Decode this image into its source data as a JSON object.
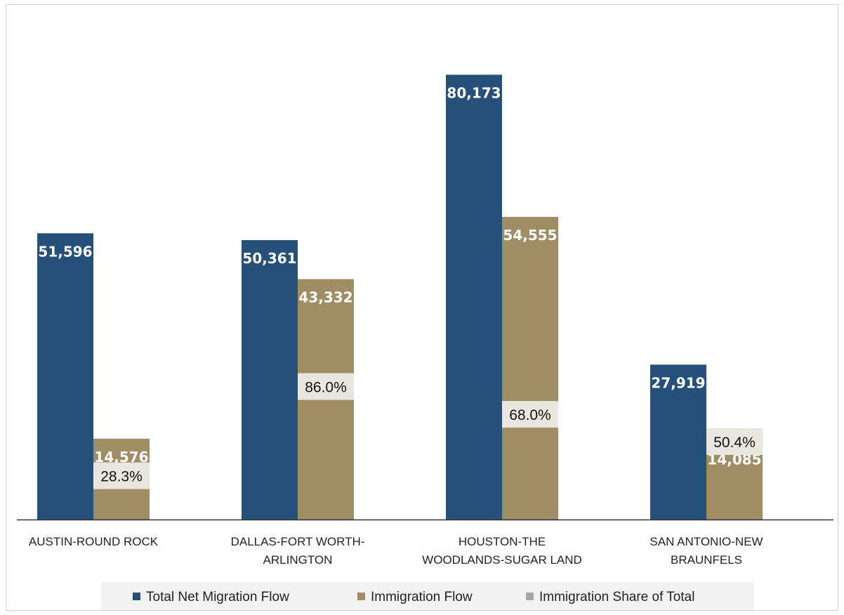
{
  "chart_data": {
    "type": "bar",
    "categories": [
      "AUSTIN-ROUND ROCK",
      "DALLAS-FORT WORTH-ARLINGTON",
      "HOUSTON-THE WOODLANDS-SUGAR LAND",
      "SAN ANTONIO-NEW BRAUNFELS"
    ],
    "category_lines": [
      [
        "AUSTIN-ROUND ROCK"
      ],
      [
        "DALLAS-FORT WORTH-",
        "ARLINGTON"
      ],
      [
        "HOUSTON-THE",
        "WOODLANDS-SUGAR LAND"
      ],
      [
        "SAN ANTONIO-NEW",
        "BRAUNFELS"
      ]
    ],
    "series": [
      {
        "name": "Total Net Migration Flow",
        "values": [
          51596,
          50361,
          80173,
          27919
        ],
        "labels": [
          "51,596",
          "50,361",
          "80,173",
          "27,919"
        ],
        "color": "#25507a"
      },
      {
        "name": "Immigration Flow",
        "values": [
          14576,
          43332,
          54555,
          14085
        ],
        "labels": [
          "14,576",
          "43,332",
          "54,555",
          "14,085"
        ],
        "color": "#a08d64"
      },
      {
        "name": "Immigration Share of Total",
        "values": [
          28.3,
          86.0,
          68.0,
          50.4
        ],
        "labels": [
          "28.3%",
          "86.0%",
          "68.0%",
          "50.4%"
        ],
        "color": "#a6a6a6"
      }
    ],
    "ylim": [
      0,
      92000
    ],
    "share_ylim": [
      0,
      330
    ],
    "grid": false,
    "legend_position": "bottom",
    "title": "",
    "xlabel": "",
    "ylabel": ""
  }
}
